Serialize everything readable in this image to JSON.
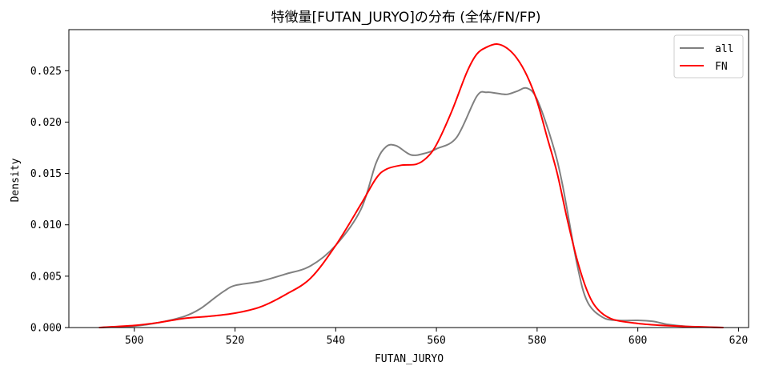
{
  "chart_data": {
    "type": "line",
    "title": "特徴量[FUTAN_JURYO]の分布 (全体/FN/FP)",
    "xlabel": "FUTAN_JURYO",
    "ylabel": "Density",
    "xlim": [
      487,
      622
    ],
    "ylim": [
      0,
      0.029
    ],
    "xticks": [
      500,
      520,
      540,
      560,
      580,
      600,
      620
    ],
    "yticks": [
      0.0,
      0.005,
      0.01,
      0.015,
      0.02,
      0.025
    ],
    "ytick_labels": [
      "0.000",
      "0.005",
      "0.010",
      "0.015",
      "0.020",
      "0.025"
    ],
    "legend_position": "top-right",
    "grid": false,
    "series": [
      {
        "name": "all",
        "color": "#808080",
        "points": [
          [
            493,
            0.0
          ],
          [
            500,
            0.00015
          ],
          [
            505,
            0.0005
          ],
          [
            510,
            0.0011
          ],
          [
            513,
            0.0018
          ],
          [
            516,
            0.0029
          ],
          [
            518,
            0.0036
          ],
          [
            520,
            0.0041
          ],
          [
            525,
            0.0045
          ],
          [
            530,
            0.0052
          ],
          [
            535,
            0.006
          ],
          [
            540,
            0.008
          ],
          [
            545,
            0.0115
          ],
          [
            548,
            0.016
          ],
          [
            550,
            0.0176
          ],
          [
            552,
            0.0177
          ],
          [
            555,
            0.0168
          ],
          [
            558,
            0.017
          ],
          [
            560,
            0.0174
          ],
          [
            564,
            0.0185
          ],
          [
            568,
            0.0225
          ],
          [
            570,
            0.0229
          ],
          [
            572,
            0.0228
          ],
          [
            574,
            0.0227
          ],
          [
            576,
            0.023
          ],
          [
            578,
            0.0233
          ],
          [
            580,
            0.0222
          ],
          [
            583,
            0.018
          ],
          [
            585,
            0.014
          ],
          [
            588,
            0.006
          ],
          [
            590,
            0.0025
          ],
          [
            593,
            0.001
          ],
          [
            596,
            0.0007
          ],
          [
            600,
            0.0007
          ],
          [
            603,
            0.0006
          ],
          [
            606,
            0.0003
          ],
          [
            610,
            0.0001
          ],
          [
            617,
            0.0
          ]
        ]
      },
      {
        "name": "FN",
        "color": "#ff0000",
        "points": [
          [
            493,
            0.0
          ],
          [
            500,
            0.0002
          ],
          [
            505,
            0.0005
          ],
          [
            510,
            0.0009
          ],
          [
            515,
            0.0011
          ],
          [
            520,
            0.0014
          ],
          [
            525,
            0.002
          ],
          [
            530,
            0.0032
          ],
          [
            535,
            0.0048
          ],
          [
            540,
            0.008
          ],
          [
            545,
            0.012
          ],
          [
            548,
            0.0145
          ],
          [
            550,
            0.0154
          ],
          [
            553,
            0.0158
          ],
          [
            556,
            0.0159
          ],
          [
            558,
            0.0165
          ],
          [
            560,
            0.0178
          ],
          [
            563,
            0.021
          ],
          [
            566,
            0.0248
          ],
          [
            568,
            0.0266
          ],
          [
            570,
            0.0273
          ],
          [
            572,
            0.0276
          ],
          [
            574,
            0.0272
          ],
          [
            576,
            0.0262
          ],
          [
            578,
            0.0245
          ],
          [
            580,
            0.022
          ],
          [
            582,
            0.0185
          ],
          [
            584,
            0.015
          ],
          [
            586,
            0.0105
          ],
          [
            588,
            0.0065
          ],
          [
            590,
            0.0035
          ],
          [
            592,
            0.0018
          ],
          [
            595,
            0.0008
          ],
          [
            600,
            0.0004
          ],
          [
            605,
            0.0002
          ],
          [
            610,
            0.0001
          ],
          [
            617,
            0.0
          ]
        ]
      }
    ]
  }
}
